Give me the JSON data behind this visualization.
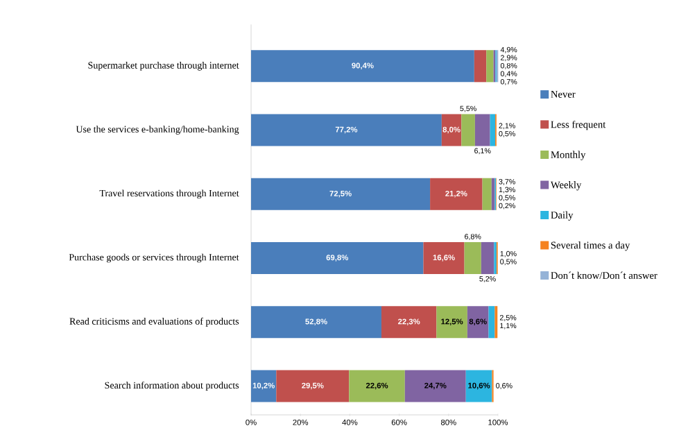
{
  "chart_data": {
    "type": "bar",
    "orientation": "horizontal",
    "stacked": true,
    "legend": "right",
    "categories": [
      "Supermarket purchase through internet",
      "Use the services e-banking/home-banking",
      "Travel reservations through Internet",
      "Purchase goods or services through Internet",
      "Read criticisms and evaluations of products",
      "Search information about products"
    ],
    "xlim": [
      0,
      100
    ],
    "xticks": [
      {
        "value": 0,
        "label": "0%"
      },
      {
        "value": 20,
        "label": "20%"
      },
      {
        "value": 40,
        "label": "40%"
      },
      {
        "value": 60,
        "label": "60%"
      },
      {
        "value": 80,
        "label": "80%"
      },
      {
        "value": 100,
        "label": "100%"
      }
    ],
    "series": [
      {
        "name": "Never",
        "color": "#4a7ebb",
        "values": [
          90.4,
          77.2,
          72.5,
          69.8,
          52.8,
          10.2
        ],
        "value_labels": [
          "90,4%",
          "77,2%",
          "72,5%",
          "69,8%",
          "52,8%",
          "10,2%"
        ]
      },
      {
        "name": "Less frequent",
        "color": "#c0504d",
        "values": [
          4.9,
          8.0,
          21.2,
          16.6,
          22.3,
          29.5
        ],
        "value_labels": [
          "4,9%",
          "8,0%",
          "21,2%",
          "16,6%",
          "22,3%",
          "29,5%"
        ]
      },
      {
        "name": "Monthly",
        "color": "#9bbb59",
        "values": [
          2.9,
          5.5,
          3.7,
          6.8,
          12.5,
          22.6
        ],
        "value_labels": [
          "2,9%",
          "5,5%",
          "3,7%",
          "6,8%",
          "12,5%",
          "22,6%"
        ]
      },
      {
        "name": "Weekly",
        "color": "#8064a2",
        "values": [
          0.8,
          6.1,
          1.3,
          5.2,
          8.6,
          24.7
        ],
        "value_labels": [
          "0,8%",
          "6,1%",
          "1,3%",
          "5,2%",
          "8,6%",
          "24,7%"
        ]
      },
      {
        "name": "Daily",
        "color": "#2cb5e0",
        "values": [
          0.4,
          2.1,
          0.5,
          1.0,
          2.5,
          10.6
        ],
        "value_labels": [
          "0,4%",
          "2,1%",
          "0,5%",
          "1,0%",
          "2,5%",
          "10,6%"
        ]
      },
      {
        "name": "Several times a day",
        "color": "#f58220",
        "values": [
          null,
          0.5,
          0.2,
          0.5,
          1.1,
          0.6
        ],
        "value_labels": [
          null,
          "0,5%",
          "0,2%",
          "0,5%",
          "1,1%",
          "0,6%"
        ]
      },
      {
        "name": "Don´t know/Don´t answer",
        "color": "#95b3d7",
        "values": [
          0.7,
          null,
          null,
          null,
          null,
          null
        ],
        "value_labels": [
          "0,7%",
          null,
          null,
          null,
          null,
          null
        ]
      }
    ]
  }
}
